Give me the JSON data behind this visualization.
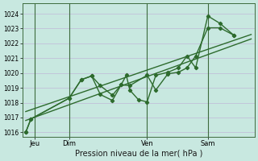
{
  "bg_color": "#c8e8e0",
  "grid_color": "#c0b8d8",
  "line_color": "#2d6b2d",
  "xlabel": "Pression niveau de la mer( hPa )",
  "ylim": [
    1015.7,
    1024.7
  ],
  "xlim": [
    -0.2,
    13.2
  ],
  "yticks": [
    1016,
    1017,
    1018,
    1019,
    1020,
    1021,
    1022,
    1023,
    1024
  ],
  "day_positions": [
    0.5,
    2.5,
    7.0,
    10.5
  ],
  "day_labels": [
    "Jeu",
    "Dim",
    "Ven",
    "Sam"
  ],
  "vline_positions": [
    0.5,
    2.5,
    7.0,
    10.5
  ],
  "trend1_x": [
    0.0,
    13.0
  ],
  "trend1_y": [
    1016.8,
    1022.3
  ],
  "trend2_x": [
    0.0,
    13.0
  ],
  "trend2_y": [
    1017.4,
    1022.6
  ],
  "jagged1_x": [
    0.0,
    0.3,
    2.5,
    3.2,
    3.8,
    4.3,
    5.0,
    5.5,
    6.0,
    7.0,
    7.5,
    8.2,
    8.8,
    9.3,
    9.8,
    10.5,
    11.2,
    12.0
  ],
  "jagged1_y": [
    1016.0,
    1016.9,
    1018.3,
    1019.55,
    1019.8,
    1019.15,
    1018.5,
    1019.2,
    1019.15,
    1019.85,
    1018.85,
    1019.95,
    1020.05,
    1020.35,
    1021.15,
    1023.05,
    1023.05,
    1022.55
  ],
  "jagged2_x": [
    0.0,
    0.3,
    2.5,
    3.2,
    3.8,
    4.3,
    5.0,
    5.5,
    5.8,
    6.0,
    6.5,
    7.0,
    7.5,
    8.2,
    8.8,
    9.3,
    9.8,
    10.5,
    11.2,
    12.0
  ],
  "jagged2_y": [
    1016.0,
    1016.9,
    1018.3,
    1019.55,
    1019.8,
    1018.55,
    1018.15,
    1019.2,
    1019.85,
    1018.85,
    1018.2,
    1018.05,
    1019.85,
    1020.05,
    1020.35,
    1021.15,
    1020.35,
    1023.85,
    1023.35,
    1022.55
  ],
  "marker_size": 2.2,
  "lw_jagged": 1.0,
  "lw_trend": 1.0,
  "ytick_fontsize": 5.5,
  "xtick_fontsize": 6.0,
  "xlabel_fontsize": 7.0
}
